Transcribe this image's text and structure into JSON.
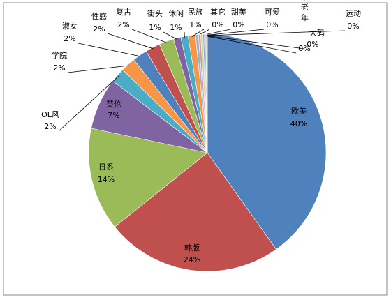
{
  "chart_data": {
    "type": "pie",
    "categories": [
      "欧美",
      "韩版",
      "日系",
      "英伦",
      "OL风",
      "学院",
      "淑女",
      "性感",
      "复古",
      "街头",
      "休闲",
      "民族",
      "其它",
      "甜美",
      "可爱",
      "中老年",
      "大码",
      "运动"
    ],
    "values": [
      40,
      24,
      14,
      7,
      2,
      2,
      2,
      2,
      2,
      1,
      1,
      1,
      0.4,
      0.3,
      0.3,
      0.2,
      0.2,
      0.2
    ],
    "value_labels": [
      "40%",
      "24%",
      "14%",
      "7%",
      "2%",
      "2%",
      "2%",
      "2%",
      "2%",
      "1%",
      "1%",
      "1%",
      "0%",
      "0%",
      "0%",
      "0%",
      "0%",
      "0%"
    ],
    "colors": [
      "#4f81bd",
      "#c0504d",
      "#9bbb59",
      "#8064a2",
      "#4bacc6",
      "#f79646",
      "#4f81bd",
      "#c0504d",
      "#9bbb59",
      "#8064a2",
      "#4bacc6",
      "#f79646",
      "#95b3d7",
      "#d99694",
      "#c3d69b",
      "#b2a1c7",
      "#93cddd",
      "#fac090"
    ]
  }
}
